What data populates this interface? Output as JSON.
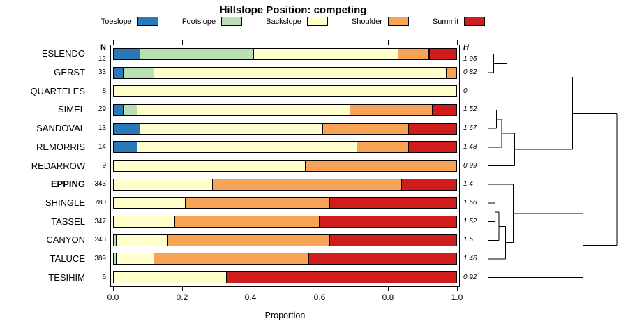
{
  "title": "Hillslope Position: competing",
  "columns": {
    "n_header": "N",
    "h_header": "H"
  },
  "axis": {
    "xlabel": "Proportion",
    "tick_labels": [
      "0.0",
      "0.2",
      "0.4",
      "0.6",
      "0.8",
      "1.0"
    ],
    "tick_values": [
      0,
      0.2,
      0.4,
      0.6,
      0.8,
      1.0
    ]
  },
  "chart_data": {
    "type": "bar",
    "stacked": true,
    "orientation": "horizontal",
    "title": "Hillslope Position: competing",
    "xlabel": "Proportion",
    "xlim": [
      0,
      1
    ],
    "legend_position": "top",
    "series_names": [
      "Toeslope",
      "Footslope",
      "Backslope",
      "Shoulder",
      "Summit"
    ],
    "colors": [
      "#2979B9",
      "#B8E0B2",
      "#FFFFCC",
      "#F7A457",
      "#D01C1C"
    ],
    "rows": [
      {
        "name": "ESLENDO",
        "n": 12,
        "h": "1.95",
        "bold": false,
        "values": [
          0.08,
          0.33,
          0.42,
          0.09,
          0.08
        ]
      },
      {
        "name": "GERST",
        "n": 33,
        "h": "0.82",
        "bold": false,
        "values": [
          0.03,
          0.09,
          0.85,
          0.03,
          0.0
        ]
      },
      {
        "name": "QUARTELES",
        "n": 8,
        "h": "0",
        "bold": false,
        "values": [
          0.0,
          0.0,
          1.0,
          0.0,
          0.0
        ]
      },
      {
        "name": "SIMEL",
        "n": 29,
        "h": "1.52",
        "bold": false,
        "values": [
          0.03,
          0.04,
          0.62,
          0.24,
          0.07
        ]
      },
      {
        "name": "SANDOVAL",
        "n": 13,
        "h": "1.67",
        "bold": false,
        "values": [
          0.08,
          0.0,
          0.53,
          0.25,
          0.14
        ]
      },
      {
        "name": "REMORRIS",
        "n": 14,
        "h": "1.48",
        "bold": false,
        "values": [
          0.07,
          0.0,
          0.64,
          0.15,
          0.14
        ]
      },
      {
        "name": "REDARROW",
        "n": 9,
        "h": "0.99",
        "bold": false,
        "values": [
          0.0,
          0.0,
          0.56,
          0.44,
          0.0
        ]
      },
      {
        "name": "EPPING",
        "n": 343,
        "h": "1.4",
        "bold": true,
        "values": [
          0.0,
          0.0,
          0.29,
          0.55,
          0.16
        ]
      },
      {
        "name": "SHINGLE",
        "n": 780,
        "h": "1.56",
        "bold": false,
        "values": [
          0.0,
          0.0,
          0.21,
          0.42,
          0.37
        ]
      },
      {
        "name": "TASSEL",
        "n": 347,
        "h": "1.52",
        "bold": false,
        "values": [
          0.0,
          0.0,
          0.18,
          0.42,
          0.4
        ]
      },
      {
        "name": "CANYON",
        "n": 243,
        "h": "1.5",
        "bold": false,
        "values": [
          0.0,
          0.01,
          0.15,
          0.47,
          0.37
        ]
      },
      {
        "name": "TALUCE",
        "n": 389,
        "h": "1.46",
        "bold": false,
        "values": [
          0.0,
          0.01,
          0.11,
          0.45,
          0.43
        ]
      },
      {
        "name": "TESIHIM",
        "n": 6,
        "h": "0.92",
        "bold": false,
        "values": [
          0.0,
          0.0,
          0.33,
          0.0,
          0.67
        ]
      }
    ],
    "dendrogram": {
      "segments": [
        [
          0.0,
          0,
          0.04,
          0
        ],
        [
          0.0,
          1,
          0.04,
          1
        ],
        [
          0.04,
          0,
          0.04,
          1
        ],
        [
          0.04,
          0.5,
          0.14,
          0.5
        ],
        [
          0.0,
          2,
          0.14,
          2
        ],
        [
          0.14,
          0.5,
          0.14,
          2
        ],
        [
          0.14,
          1.25,
          0.64,
          1.25
        ],
        [
          0.0,
          3,
          0.06,
          3
        ],
        [
          0.0,
          4,
          0.06,
          4
        ],
        [
          0.06,
          3,
          0.06,
          4
        ],
        [
          0.06,
          3.5,
          0.1,
          3.5
        ],
        [
          0.0,
          5,
          0.1,
          5
        ],
        [
          0.1,
          3.5,
          0.1,
          5
        ],
        [
          0.1,
          4.25,
          0.2,
          4.25
        ],
        [
          0.0,
          6,
          0.2,
          6
        ],
        [
          0.2,
          4.25,
          0.2,
          6
        ],
        [
          0.2,
          5.12,
          0.64,
          5.12
        ],
        [
          0.64,
          1.25,
          0.64,
          5.12
        ],
        [
          0.64,
          3.19,
          0.98,
          3.19
        ],
        [
          0.0,
          8,
          0.05,
          8
        ],
        [
          0.0,
          9,
          0.05,
          9
        ],
        [
          0.05,
          8,
          0.05,
          9
        ],
        [
          0.05,
          8.5,
          0.08,
          8.5
        ],
        [
          0.0,
          10,
          0.08,
          10
        ],
        [
          0.08,
          8.5,
          0.08,
          10
        ],
        [
          0.08,
          9.25,
          0.13,
          9.25
        ],
        [
          0.0,
          11,
          0.13,
          11
        ],
        [
          0.13,
          9.25,
          0.13,
          11
        ],
        [
          0.13,
          10.12,
          0.19,
          10.12
        ],
        [
          0.0,
          7,
          0.19,
          7
        ],
        [
          0.19,
          7,
          0.19,
          10.12
        ],
        [
          0.19,
          8.56,
          0.72,
          8.56
        ],
        [
          0.0,
          12,
          0.72,
          12
        ],
        [
          0.72,
          8.56,
          0.72,
          12
        ],
        [
          0.72,
          10.28,
          0.98,
          10.28
        ],
        [
          0.98,
          3.19,
          0.98,
          10.28
        ]
      ]
    }
  }
}
